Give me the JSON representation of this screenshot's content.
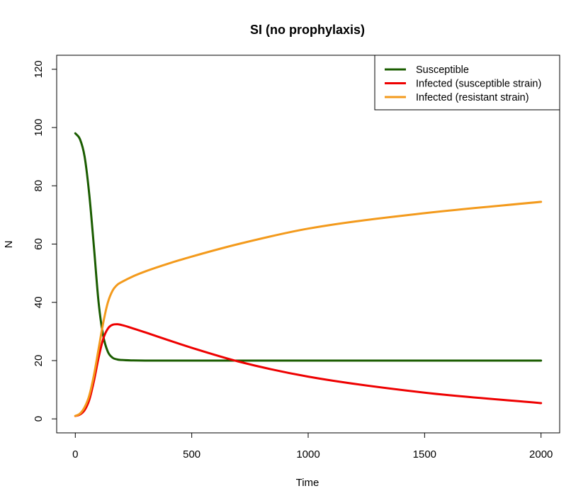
{
  "chart_data": {
    "type": "line",
    "title": "SI (no prophylaxis)",
    "xlabel": "Time",
    "ylabel": "N",
    "xlim": [
      -80,
      2080
    ],
    "ylim": [
      -4.8,
      124.8
    ],
    "xticks": [
      0,
      500,
      1000,
      1500,
      2000
    ],
    "yticks": [
      0,
      20,
      40,
      60,
      80,
      100,
      120
    ],
    "grid": false,
    "legend_position": "top-right",
    "series": [
      {
        "name": "Susceptible",
        "color": "#1a5c00",
        "x": [
          0,
          20,
          40,
          60,
          80,
          100,
          120,
          140,
          160,
          180,
          200,
          250,
          300,
          400,
          500,
          700,
          1000,
          1500,
          2000
        ],
        "y": [
          98,
          96,
          90,
          77,
          59,
          40,
          28.5,
          23,
          21,
          20.4,
          20.2,
          20.05,
          20,
          20,
          20,
          20,
          20,
          20,
          20
        ]
      },
      {
        "name": "Infected (susceptible strain)",
        "color": "#ee0000",
        "x": [
          0,
          20,
          40,
          60,
          80,
          100,
          120,
          140,
          160,
          180,
          200,
          250,
          300,
          400,
          500,
          700,
          1000,
          1500,
          2000
        ],
        "y": [
          1,
          1.5,
          3,
          6.5,
          13,
          21,
          27.5,
          31,
          32.3,
          32.5,
          32.2,
          31,
          29.7,
          27,
          24.4,
          19.7,
          14.5,
          9,
          5.4
        ]
      },
      {
        "name": "Infected (resistant strain)",
        "color": "#f39a1c",
        "x": [
          0,
          20,
          40,
          60,
          80,
          100,
          120,
          140,
          160,
          180,
          200,
          250,
          300,
          400,
          500,
          700,
          1000,
          1500,
          2000
        ],
        "y": [
          1,
          1.8,
          4,
          8,
          15,
          24,
          33,
          40,
          44,
          46,
          47,
          49,
          50.6,
          53.3,
          55.7,
          60,
          65.3,
          70.6,
          74.5
        ]
      }
    ]
  }
}
